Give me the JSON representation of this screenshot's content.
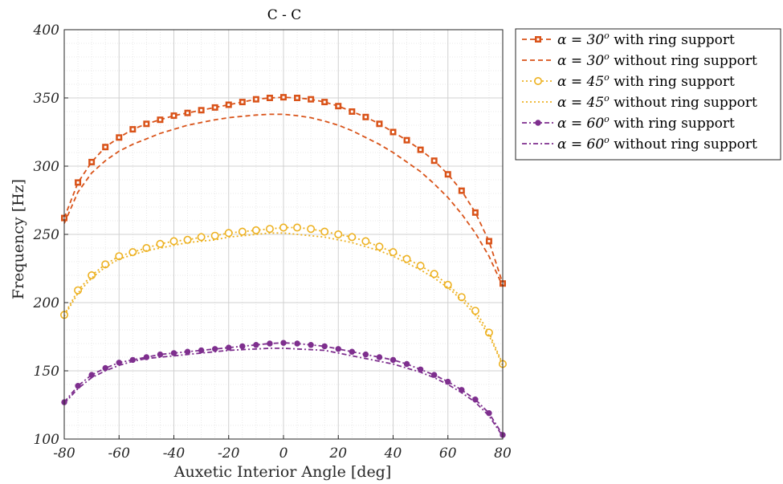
{
  "chart_data": {
    "type": "line",
    "title": "C - C",
    "xlabel": "Auxetic Interior Angle [deg]",
    "ylabel": "Frequency [Hz]",
    "xlim": [
      -80,
      80
    ],
    "ylim": [
      100,
      400
    ],
    "xticks": [
      -80,
      -60,
      -40,
      -20,
      0,
      20,
      40,
      60,
      80
    ],
    "yticks": [
      100,
      150,
      200,
      250,
      300,
      350,
      400
    ],
    "xtick_labels": [
      "-80",
      "-60",
      "-40",
      "-20",
      "0",
      "20",
      "40",
      "60",
      "80"
    ],
    "ytick_labels": [
      "100",
      "150",
      "200",
      "250",
      "300",
      "350",
      "400"
    ],
    "grid": true,
    "minor_grid": true,
    "legend_position": "outside-top-right",
    "x": [
      -80,
      -75,
      -70,
      -65,
      -60,
      -55,
      -50,
      -45,
      -40,
      -35,
      -30,
      -25,
      -20,
      -15,
      -10,
      -5,
      0,
      5,
      10,
      15,
      20,
      25,
      30,
      35,
      40,
      45,
      50,
      55,
      60,
      65,
      70,
      75,
      80
    ],
    "series": [
      {
        "name": "α = 30° with ring support",
        "legend_prefix": "α = 30",
        "legend_sup": "o",
        "legend_suffix": " with ring support",
        "color": "#d95319",
        "dash": "6,4",
        "marker": "square",
        "values": [
          262,
          288,
          303,
          314,
          321,
          327,
          331,
          334,
          337,
          339,
          341,
          343,
          345,
          347,
          349,
          350,
          350.5,
          350,
          349,
          347,
          344,
          340,
          336,
          331,
          325,
          319,
          312,
          304,
          294,
          282,
          266,
          245,
          214
        ]
      },
      {
        "name": "α = 30° without ring support",
        "legend_prefix": "α = 30",
        "legend_sup": "o",
        "legend_suffix": " without ring support",
        "color": "#d95319",
        "dash": "6,4",
        "marker": "none",
        "values": [
          258,
          281,
          295,
          304,
          311,
          316,
          320,
          324,
          327,
          330,
          332,
          334,
          335.5,
          336.5,
          337.5,
          338,
          338,
          337,
          335.5,
          333,
          330,
          326,
          321,
          316,
          310,
          303,
          296,
          287,
          277,
          265,
          251,
          234,
          212
        ]
      },
      {
        "name": "α = 45° with ring support",
        "legend_prefix": "α = 45",
        "legend_sup": "o",
        "legend_suffix": " with ring support",
        "color": "#edb120",
        "dash": "2,3",
        "marker": "circle-open",
        "values": [
          191,
          209,
          220,
          228,
          234,
          237,
          240,
          243,
          245,
          246,
          248,
          249,
          251,
          252,
          253,
          254,
          255,
          255,
          254,
          252,
          250,
          248,
          245,
          241,
          237,
          232,
          227,
          221,
          213,
          204,
          194,
          178,
          155
        ]
      },
      {
        "name": "α = 45° without ring support",
        "legend_prefix": "α = 45",
        "legend_sup": "o",
        "legend_suffix": " without ring support",
        "color": "#edb120",
        "dash": "2,3",
        "marker": "none",
        "values": [
          190,
          207,
          218,
          226,
          232,
          235,
          238,
          240,
          242,
          244,
          245,
          246,
          248,
          249,
          250,
          251,
          251,
          250,
          249,
          248,
          246,
          244,
          241,
          238,
          234,
          229,
          224,
          218,
          211,
          202,
          191,
          176,
          154
        ]
      },
      {
        "name": "α = 60° with ring support",
        "legend_prefix": "α = 60",
        "legend_sup": "o",
        "legend_suffix": " with ring support",
        "color": "#7e2f8e",
        "dash": "6,3,2,3",
        "marker": "dot",
        "values": [
          127,
          139,
          147,
          152,
          156,
          158,
          160,
          162,
          163,
          164,
          165,
          166,
          167,
          168,
          169,
          170,
          170.5,
          170,
          169,
          168,
          166,
          164,
          162,
          160,
          158,
          155,
          151,
          147,
          142,
          136,
          129,
          119,
          103
        ]
      },
      {
        "name": "α = 60° without ring support",
        "legend_prefix": "α = 60",
        "legend_sup": "o",
        "legend_suffix": " without ring support",
        "color": "#7e2f8e",
        "dash": "6,3,2,3",
        "marker": "none",
        "values": [
          126,
          137,
          145,
          150,
          154,
          157,
          159,
          160,
          161,
          162,
          163,
          164,
          165,
          165.5,
          166,
          166.5,
          166.5,
          166,
          165.5,
          165,
          163,
          161,
          159,
          157,
          155,
          152,
          149,
          145,
          140,
          134,
          127,
          117,
          102
        ]
      }
    ]
  }
}
